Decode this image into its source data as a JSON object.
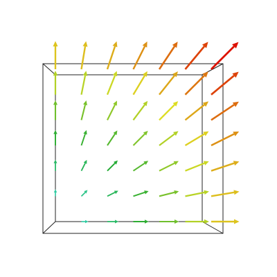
{
  "chart_data": {
    "type": "quiver",
    "xlim": [
      0,
      6
    ],
    "ylim": [
      0,
      6
    ],
    "colormap": [
      "#33dddd",
      "#22aa33",
      "#dddd22",
      "#dd1100"
    ],
    "points": [
      {
        "x": 0,
        "y": 0,
        "u": 0,
        "v": 0
      },
      {
        "x": 1,
        "y": 0,
        "u": 1,
        "v": 0
      },
      {
        "x": 2,
        "y": 0,
        "u": 2,
        "v": 0
      },
      {
        "x": 3,
        "y": 0,
        "u": 3,
        "v": 0
      },
      {
        "x": 4,
        "y": 0,
        "u": 4,
        "v": 0
      },
      {
        "x": 5,
        "y": 0,
        "u": 5,
        "v": 0
      },
      {
        "x": 6,
        "y": 0,
        "u": 6,
        "v": 0
      },
      {
        "x": 0,
        "y": 1,
        "u": 0,
        "v": 1
      },
      {
        "x": 1,
        "y": 1,
        "u": 1,
        "v": 1
      },
      {
        "x": 2,
        "y": 1,
        "u": 2,
        "v": 1
      },
      {
        "x": 3,
        "y": 1,
        "u": 3,
        "v": 1
      },
      {
        "x": 4,
        "y": 1,
        "u": 4,
        "v": 1
      },
      {
        "x": 5,
        "y": 1,
        "u": 5,
        "v": 1
      },
      {
        "x": 6,
        "y": 1,
        "u": 6,
        "v": 1
      },
      {
        "x": 0,
        "y": 2,
        "u": 0,
        "v": 2
      },
      {
        "x": 1,
        "y": 2,
        "u": 1,
        "v": 2
      },
      {
        "x": 2,
        "y": 2,
        "u": 2,
        "v": 2
      },
      {
        "x": 3,
        "y": 2,
        "u": 3,
        "v": 2
      },
      {
        "x": 4,
        "y": 2,
        "u": 4,
        "v": 2
      },
      {
        "x": 5,
        "y": 2,
        "u": 5,
        "v": 2
      },
      {
        "x": 6,
        "y": 2,
        "u": 6,
        "v": 2
      },
      {
        "x": 0,
        "y": 3,
        "u": 0,
        "v": 3
      },
      {
        "x": 1,
        "y": 3,
        "u": 1,
        "v": 3
      },
      {
        "x": 2,
        "y": 3,
        "u": 2,
        "v": 3
      },
      {
        "x": 3,
        "y": 3,
        "u": 3,
        "v": 3
      },
      {
        "x": 4,
        "y": 3,
        "u": 4,
        "v": 3
      },
      {
        "x": 5,
        "y": 3,
        "u": 5,
        "v": 3
      },
      {
        "x": 6,
        "y": 3,
        "u": 6,
        "v": 3
      },
      {
        "x": 0,
        "y": 4,
        "u": 0,
        "v": 4
      },
      {
        "x": 1,
        "y": 4,
        "u": 1,
        "v": 4
      },
      {
        "x": 2,
        "y": 4,
        "u": 2,
        "v": 4
      },
      {
        "x": 3,
        "y": 4,
        "u": 3,
        "v": 4
      },
      {
        "x": 4,
        "y": 4,
        "u": 4,
        "v": 4
      },
      {
        "x": 5,
        "y": 4,
        "u": 5,
        "v": 4
      },
      {
        "x": 6,
        "y": 4,
        "u": 6,
        "v": 4
      },
      {
        "x": 0,
        "y": 5,
        "u": 0,
        "v": 5
      },
      {
        "x": 1,
        "y": 5,
        "u": 1,
        "v": 5
      },
      {
        "x": 2,
        "y": 5,
        "u": 2,
        "v": 5
      },
      {
        "x": 3,
        "y": 5,
        "u": 3,
        "v": 5
      },
      {
        "x": 4,
        "y": 5,
        "u": 4,
        "v": 5
      },
      {
        "x": 5,
        "y": 5,
        "u": 5,
        "v": 5
      },
      {
        "x": 6,
        "y": 5,
        "u": 6,
        "v": 5
      },
      {
        "x": 0,
        "y": 6,
        "u": 0,
        "v": 6
      },
      {
        "x": 1,
        "y": 6,
        "u": 1,
        "v": 6
      },
      {
        "x": 2,
        "y": 6,
        "u": 2,
        "v": 6
      },
      {
        "x": 3,
        "y": 6,
        "u": 3,
        "v": 6
      },
      {
        "x": 4,
        "y": 6,
        "u": 4,
        "v": 6
      },
      {
        "x": 5,
        "y": 6,
        "u": 5,
        "v": 6
      },
      {
        "x": 6,
        "y": 6,
        "u": 6,
        "v": 6
      }
    ]
  }
}
